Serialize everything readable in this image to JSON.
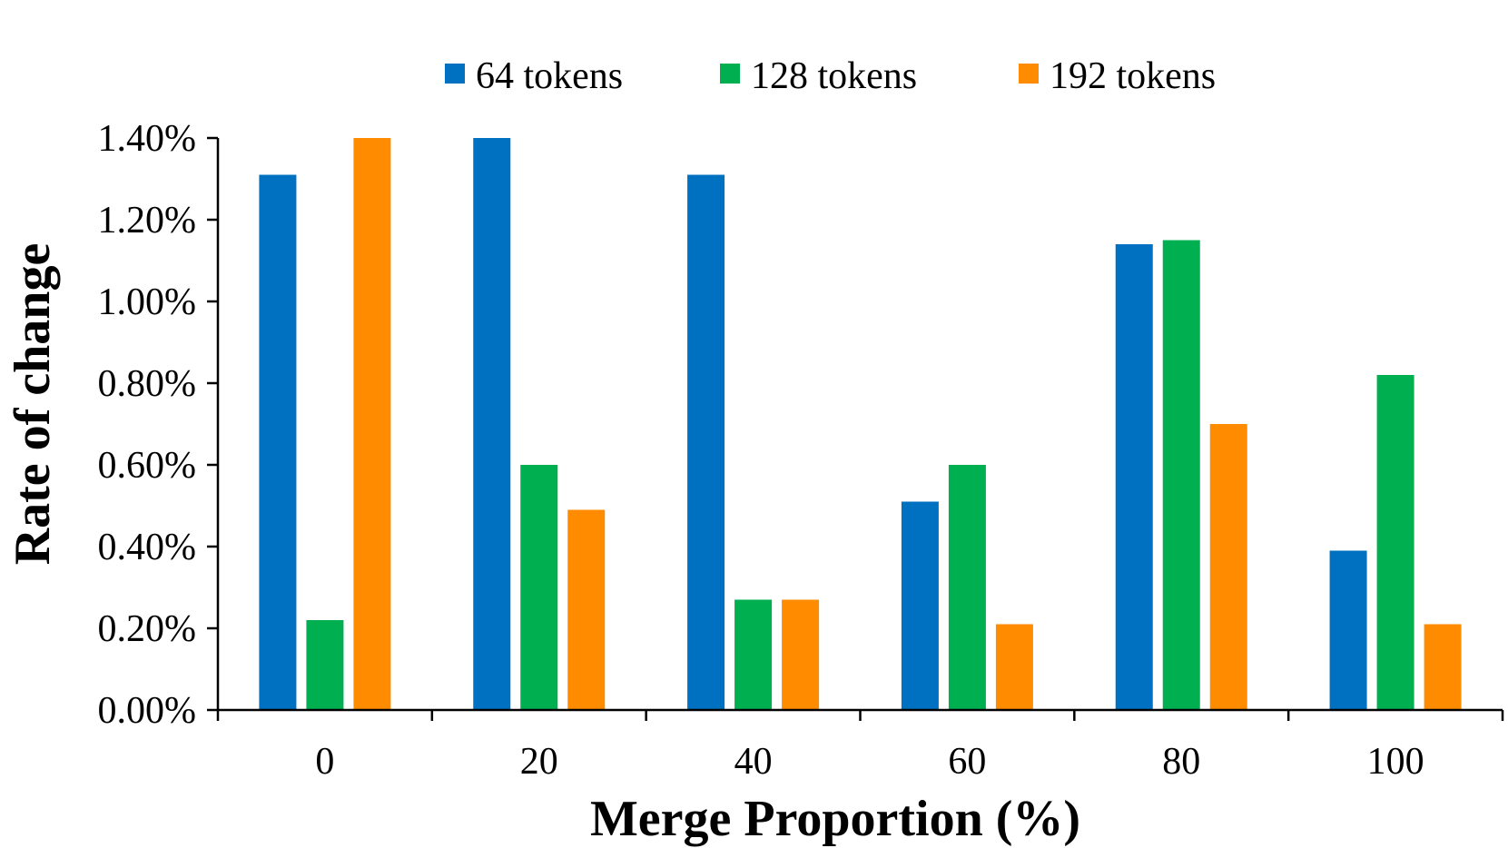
{
  "chart_data": {
    "type": "bar",
    "title": "",
    "xlabel": "Merge Proportion (%)",
    "ylabel": "Rate of change",
    "categories": [
      "0",
      "20",
      "40",
      "60",
      "80",
      "100"
    ],
    "ylim": [
      0,
      1.4
    ],
    "yticks": [
      0,
      0.2,
      0.4,
      0.6,
      0.8,
      1.0,
      1.2,
      1.4
    ],
    "ytick_labels": [
      "0.00%",
      "0.20%",
      "0.40%",
      "0.60%",
      "0.80%",
      "1.00%",
      "1.20%",
      "1.40%"
    ],
    "legend_position": "top",
    "series": [
      {
        "name": "64 tokens",
        "color": "#0070C0",
        "values": [
          1.31,
          1.4,
          1.31,
          0.51,
          1.14,
          0.39
        ]
      },
      {
        "name": "128 tokens",
        "color": "#00B050",
        "values": [
          0.22,
          0.6,
          0.27,
          0.6,
          1.15,
          0.82
        ]
      },
      {
        "name": "192 tokens",
        "color": "#FF8C00",
        "values": [
          1.4,
          0.49,
          0.27,
          0.21,
          0.7,
          0.21
        ]
      }
    ]
  }
}
